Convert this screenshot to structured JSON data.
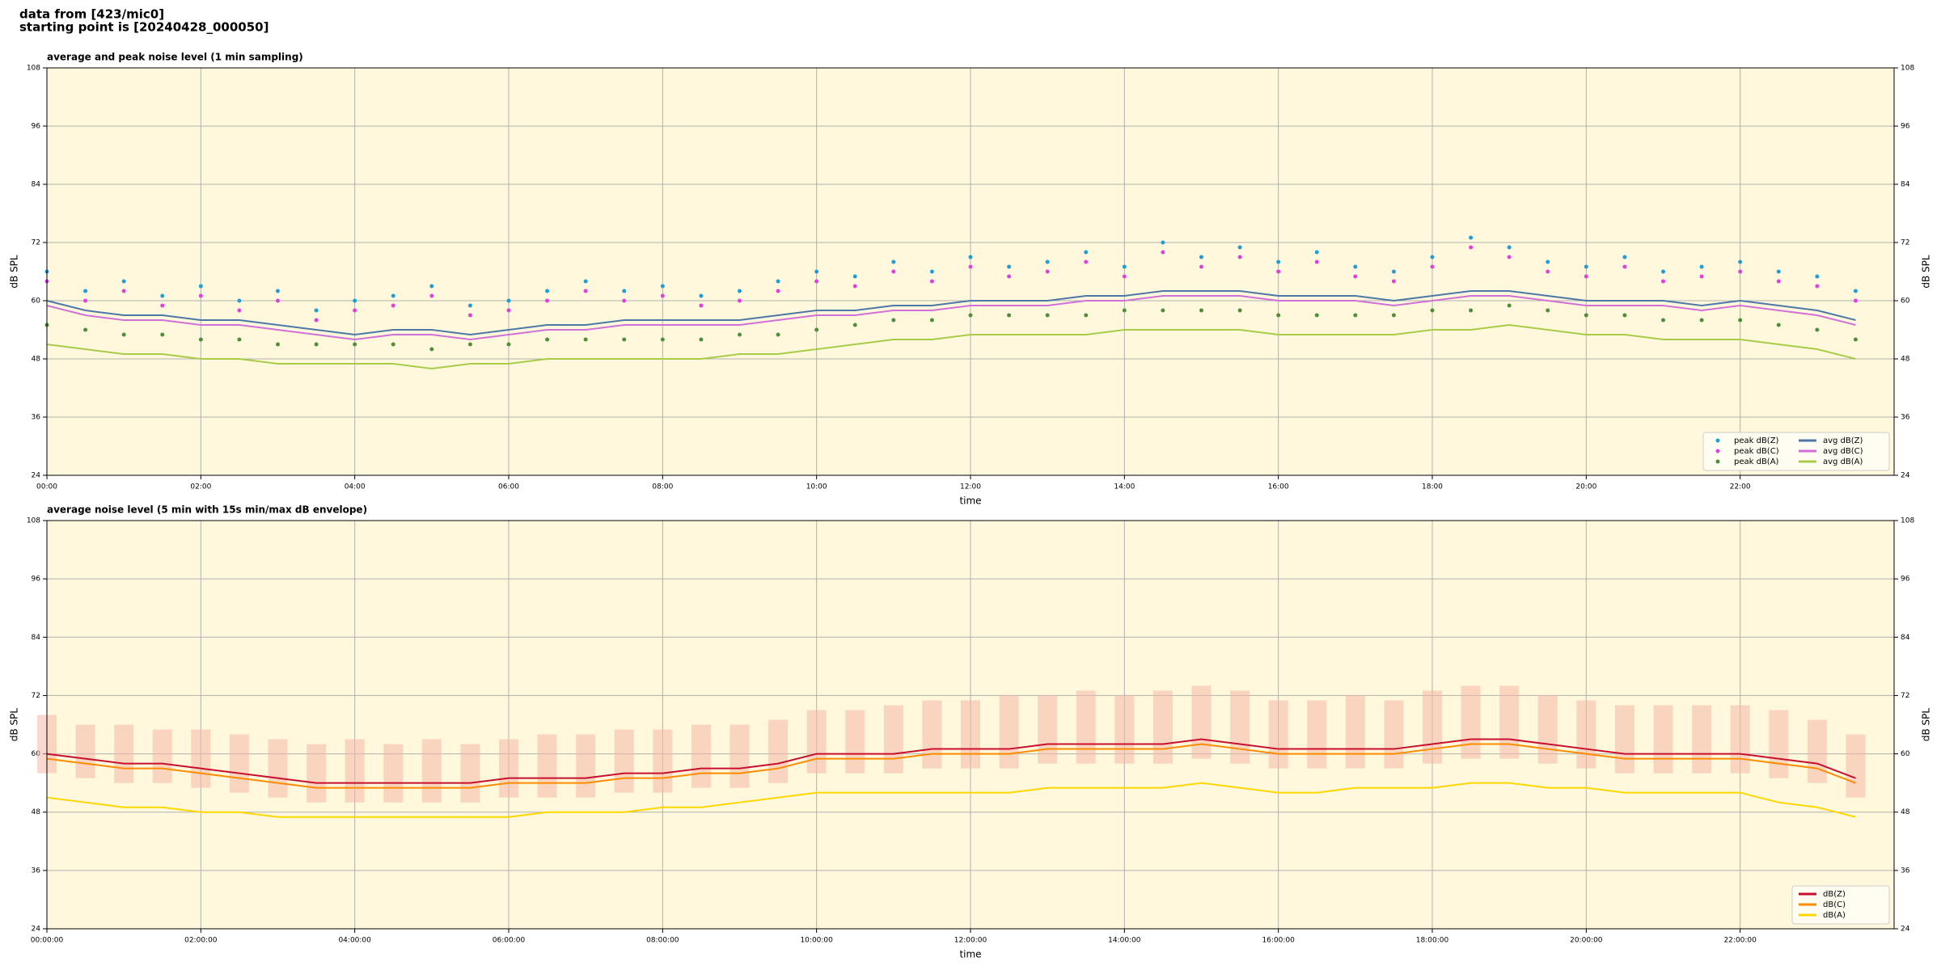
{
  "header": [
    "data from [423/mic0]",
    "starting point is [20240428_000050]"
  ],
  "chart_data": [
    {
      "type": "line",
      "title": "average and peak noise level (1 min sampling)",
      "xlabel": "time",
      "ylabel": "dB SPL",
      "xlim": [
        0,
        24
      ],
      "ylim": [
        24,
        108
      ],
      "grid": true,
      "legend": "lower right",
      "legend_columns": 2,
      "xticks": [
        {
          "value": 0,
          "label": "00:00"
        },
        {
          "value": 2,
          "label": "02:00"
        },
        {
          "value": 4,
          "label": "04:00"
        },
        {
          "value": 6,
          "label": "06:00"
        },
        {
          "value": 8,
          "label": "08:00"
        },
        {
          "value": 10,
          "label": "10:00"
        },
        {
          "value": 12,
          "label": "12:00"
        },
        {
          "value": 14,
          "label": "14:00"
        },
        {
          "value": 16,
          "label": "16:00"
        },
        {
          "value": 18,
          "label": "18:00"
        },
        {
          "value": 20,
          "label": "20:00"
        },
        {
          "value": 22,
          "label": "22:00"
        }
      ],
      "yticks": [
        24,
        36,
        48,
        60,
        72,
        84,
        96,
        108
      ],
      "x": [
        0,
        0.5,
        1,
        1.5,
        2,
        2.5,
        3,
        3.5,
        4,
        4.5,
        5,
        5.5,
        6,
        6.5,
        7,
        7.5,
        8,
        8.5,
        9,
        9.5,
        10,
        10.5,
        11,
        11.5,
        12,
        12.5,
        13,
        13.5,
        14,
        14.5,
        15,
        15.5,
        16,
        16.5,
        17,
        17.5,
        18,
        18.5,
        19,
        19.5,
        20,
        20.5,
        21,
        21.5,
        22,
        22.5,
        23,
        23.5
      ],
      "series": [
        {
          "name": "peak dB(Z)",
          "color": "#1f9fd8",
          "marker": "dot",
          "values": [
            66,
            62,
            64,
            61,
            63,
            60,
            62,
            58,
            60,
            61,
            63,
            59,
            60,
            62,
            64,
            62,
            63,
            61,
            62,
            64,
            66,
            65,
            68,
            66,
            69,
            67,
            68,
            70,
            67,
            72,
            69,
            71,
            68,
            70,
            67,
            66,
            69,
            73,
            71,
            68,
            67,
            69,
            66,
            67,
            68,
            66,
            65,
            62
          ]
        },
        {
          "name": "peak dB(C)",
          "color": "#e040e0",
          "marker": "dot",
          "values": [
            64,
            60,
            62,
            59,
            61,
            58,
            60,
            56,
            58,
            59,
            61,
            57,
            58,
            60,
            62,
            60,
            61,
            59,
            60,
            62,
            64,
            63,
            66,
            64,
            67,
            65,
            66,
            68,
            65,
            70,
            67,
            69,
            66,
            68,
            65,
            64,
            67,
            71,
            69,
            66,
            65,
            67,
            64,
            65,
            66,
            64,
            63,
            60
          ]
        },
        {
          "name": "peak dB(A)",
          "color": "#4f8f3a",
          "marker": "dot",
          "values": [
            55,
            54,
            53,
            53,
            52,
            52,
            51,
            51,
            51,
            51,
            50,
            51,
            51,
            52,
            52,
            52,
            52,
            52,
            53,
            53,
            54,
            55,
            56,
            56,
            57,
            57,
            57,
            57,
            58,
            58,
            58,
            58,
            57,
            57,
            57,
            57,
            58,
            58,
            59,
            58,
            57,
            57,
            56,
            56,
            56,
            55,
            54,
            52
          ]
        },
        {
          "name": "avg dB(Z)",
          "color": "#4c78a8",
          "marker": "line",
          "values": [
            60,
            58,
            57,
            57,
            56,
            56,
            55,
            54,
            53,
            54,
            54,
            53,
            54,
            55,
            55,
            56,
            56,
            56,
            56,
            57,
            58,
            58,
            59,
            59,
            60,
            60,
            60,
            61,
            61,
            62,
            62,
            62,
            61,
            61,
            61,
            60,
            61,
            62,
            62,
            61,
            60,
            60,
            60,
            59,
            60,
            59,
            58,
            56
          ]
        },
        {
          "name": "avg dB(C)",
          "color": "#d070d8",
          "marker": "line",
          "values": [
            59,
            57,
            56,
            56,
            55,
            55,
            54,
            53,
            52,
            53,
            53,
            52,
            53,
            54,
            54,
            55,
            55,
            55,
            55,
            56,
            57,
            57,
            58,
            58,
            59,
            59,
            59,
            60,
            60,
            61,
            61,
            61,
            60,
            60,
            60,
            59,
            60,
            61,
            61,
            60,
            59,
            59,
            59,
            58,
            59,
            58,
            57,
            55
          ]
        },
        {
          "name": "avg dB(A)",
          "color": "#a8cc48",
          "marker": "line",
          "values": [
            51,
            50,
            49,
            49,
            48,
            48,
            47,
            47,
            47,
            47,
            46,
            47,
            47,
            48,
            48,
            48,
            48,
            48,
            49,
            49,
            50,
            51,
            52,
            52,
            53,
            53,
            53,
            53,
            54,
            54,
            54,
            54,
            53,
            53,
            53,
            53,
            54,
            54,
            55,
            54,
            53,
            53,
            52,
            52,
            52,
            51,
            50,
            48
          ]
        }
      ]
    },
    {
      "type": "line",
      "title": "average noise level (5 min with 15s min/max dB envelope)",
      "xlabel": "time",
      "ylabel": "dB SPL",
      "xlim": [
        0,
        24
      ],
      "ylim": [
        24,
        108
      ],
      "grid": true,
      "legend": "lower right",
      "legend_columns": 1,
      "xticks": [
        {
          "value": 0,
          "label": "00:00:00"
        },
        {
          "value": 2,
          "label": "02:00:00"
        },
        {
          "value": 4,
          "label": "04:00:00"
        },
        {
          "value": 6,
          "label": "06:00:00"
        },
        {
          "value": 8,
          "label": "08:00:00"
        },
        {
          "value": 10,
          "label": "10:00:00"
        },
        {
          "value": 12,
          "label": "12:00:00"
        },
        {
          "value": 14,
          "label": "14:00:00"
        },
        {
          "value": 16,
          "label": "16:00:00"
        },
        {
          "value": 18,
          "label": "18:00:00"
        },
        {
          "value": 20,
          "label": "20:00:00"
        },
        {
          "value": 22,
          "label": "22:00:00"
        }
      ],
      "yticks": [
        24,
        36,
        48,
        60,
        72,
        84,
        96,
        108
      ],
      "x": [
        0,
        0.5,
        1,
        1.5,
        2,
        2.5,
        3,
        3.5,
        4,
        4.5,
        5,
        5.5,
        6,
        6.5,
        7,
        7.5,
        8,
        8.5,
        9,
        9.5,
        10,
        10.5,
        11,
        11.5,
        12,
        12.5,
        13,
        13.5,
        14,
        14.5,
        15,
        15.5,
        16,
        16.5,
        17,
        17.5,
        18,
        18.5,
        19,
        19.5,
        20,
        20.5,
        21,
        21.5,
        22,
        22.5,
        23,
        23.5
      ],
      "envelope": {
        "color": "#f4b8a8",
        "low": [
          56,
          55,
          54,
          54,
          53,
          52,
          51,
          50,
          50,
          50,
          50,
          50,
          51,
          51,
          51,
          52,
          52,
          53,
          53,
          54,
          56,
          56,
          56,
          57,
          57,
          57,
          58,
          58,
          58,
          58,
          59,
          58,
          57,
          57,
          57,
          57,
          58,
          59,
          59,
          58,
          57,
          56,
          56,
          56,
          56,
          55,
          54,
          51
        ],
        "high": [
          68,
          66,
          66,
          65,
          65,
          64,
          63,
          62,
          63,
          62,
          63,
          62,
          63,
          64,
          64,
          65,
          65,
          66,
          66,
          67,
          69,
          69,
          70,
          71,
          71,
          72,
          72,
          73,
          72,
          73,
          74,
          73,
          71,
          71,
          72,
          71,
          73,
          74,
          74,
          72,
          71,
          70,
          70,
          70,
          70,
          69,
          67,
          64
        ]
      },
      "series": [
        {
          "name": "dB(Z)",
          "color": "#c8102e",
          "marker": "line",
          "values": [
            60,
            59,
            58,
            58,
            57,
            56,
            55,
            54,
            54,
            54,
            54,
            54,
            55,
            55,
            55,
            56,
            56,
            57,
            57,
            58,
            60,
            60,
            60,
            61,
            61,
            61,
            62,
            62,
            62,
            62,
            63,
            62,
            61,
            61,
            61,
            61,
            62,
            63,
            63,
            62,
            61,
            60,
            60,
            60,
            60,
            59,
            58,
            55
          ]
        },
        {
          "name": "dB(C)",
          "color": "#ff8c00",
          "marker": "line",
          "values": [
            59,
            58,
            57,
            57,
            56,
            55,
            54,
            53,
            53,
            53,
            53,
            53,
            54,
            54,
            54,
            55,
            55,
            56,
            56,
            57,
            59,
            59,
            59,
            60,
            60,
            60,
            61,
            61,
            61,
            61,
            62,
            61,
            60,
            60,
            60,
            60,
            61,
            62,
            62,
            61,
            60,
            59,
            59,
            59,
            59,
            58,
            57,
            54
          ]
        },
        {
          "name": "dB(A)",
          "color": "#ffd700",
          "marker": "line",
          "values": [
            51,
            50,
            49,
            49,
            48,
            48,
            47,
            47,
            47,
            47,
            47,
            47,
            47,
            48,
            48,
            48,
            49,
            49,
            50,
            51,
            52,
            52,
            52,
            52,
            52,
            52,
            53,
            53,
            53,
            53,
            54,
            53,
            52,
            52,
            53,
            53,
            53,
            54,
            54,
            53,
            53,
            52,
            52,
            52,
            52,
            50,
            49,
            47
          ]
        }
      ]
    }
  ]
}
